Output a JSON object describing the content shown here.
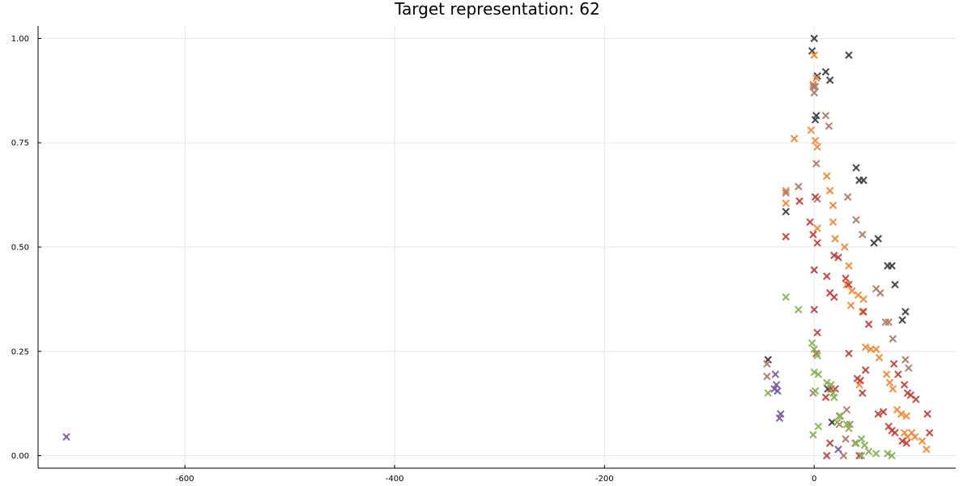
{
  "chart_data": {
    "type": "scatter",
    "title": "Target representation: 62",
    "xlabel": "",
    "ylabel": "",
    "xlim": [
      -740,
      135
    ],
    "ylim": [
      -0.03,
      1.03
    ],
    "x_ticks": [
      -600,
      -400,
      -200,
      0
    ],
    "x_tick_labels": [
      "-600",
      "-400",
      "-200",
      "0"
    ],
    "y_ticks": [
      0,
      0.25,
      0.5,
      0.75,
      1.0
    ],
    "y_tick_labels": [
      "0.00",
      "0.25",
      "0.50",
      "0.75",
      "1.00"
    ],
    "grid": true,
    "marker": "x",
    "series": [
      {
        "name": "dark",
        "color": "#3e3e44",
        "points": [
          [
            0,
            1.0
          ],
          [
            -2,
            0.97
          ],
          [
            33,
            0.96
          ],
          [
            11,
            0.92
          ],
          [
            3,
            0.91
          ],
          [
            15,
            0.9
          ],
          [
            2,
            0.815
          ],
          [
            1,
            0.805
          ],
          [
            40,
            0.69
          ],
          [
            43,
            0.66
          ],
          [
            47,
            0.66
          ],
          [
            -27,
            0.585
          ],
          [
            61,
            0.52
          ],
          [
            57,
            0.51
          ],
          [
            70,
            0.455
          ],
          [
            74,
            0.455
          ],
          [
            77,
            0.41
          ],
          [
            87,
            0.345
          ],
          [
            84,
            0.325
          ],
          [
            -44,
            0.23
          ],
          [
            13,
            0.16
          ],
          [
            17,
            0.08
          ]
        ]
      },
      {
        "name": "orange",
        "color": "#f0893a",
        "points": [
          [
            0,
            0.96
          ],
          [
            2,
            0.905
          ],
          [
            -1,
            0.89
          ],
          [
            -3,
            0.78
          ],
          [
            -19,
            0.76
          ],
          [
            1,
            0.755
          ],
          [
            3,
            0.74
          ],
          [
            12,
            0.67
          ],
          [
            -27,
            0.635
          ],
          [
            15,
            0.635
          ],
          [
            -27,
            0.605
          ],
          [
            18,
            0.6
          ],
          [
            3,
            0.545
          ],
          [
            18,
            0.56
          ],
          [
            20,
            0.52
          ],
          [
            29,
            0.5
          ],
          [
            33,
            0.455
          ],
          [
            31,
            0.41
          ],
          [
            36,
            0.395
          ],
          [
            42,
            0.385
          ],
          [
            47,
            0.375
          ],
          [
            35,
            0.36
          ],
          [
            46,
            0.345
          ],
          [
            49,
            0.26
          ],
          [
            54,
            0.255
          ],
          [
            59,
            0.255
          ],
          [
            62,
            0.235
          ],
          [
            43,
            0.17
          ],
          [
            69,
            0.195
          ],
          [
            72,
            0.175
          ],
          [
            75,
            0.16
          ],
          [
            79,
            0.11
          ],
          [
            83,
            0.1
          ],
          [
            88,
            0.095
          ],
          [
            93,
            0.055
          ],
          [
            86,
            0.055
          ],
          [
            96,
            0.045
          ],
          [
            89,
            0.045
          ],
          [
            103,
            0.035
          ],
          [
            107,
            0.015
          ]
        ]
      },
      {
        "name": "tan",
        "color": "#b07b68",
        "points": [
          [
            -1,
            0.885
          ],
          [
            1,
            0.885
          ],
          [
            0,
            0.87
          ],
          [
            11,
            0.815
          ],
          [
            14,
            0.79
          ],
          [
            2,
            0.7
          ],
          [
            -15,
            0.645
          ],
          [
            -27,
            0.63
          ],
          [
            32,
            0.62
          ],
          [
            3,
            0.615
          ],
          [
            40,
            0.565
          ],
          [
            46,
            0.53
          ],
          [
            59,
            0.4
          ],
          [
            63,
            0.39
          ],
          [
            71,
            0.32
          ],
          [
            68,
            0.32
          ],
          [
            75,
            0.28
          ],
          [
            87,
            0.23
          ],
          [
            90,
            0.21
          ],
          [
            -45,
            0.22
          ],
          [
            -45,
            0.19
          ],
          [
            -1,
            0.15
          ],
          [
            24,
            0.095
          ],
          [
            31,
            0.11
          ],
          [
            24,
            0.075
          ],
          [
            34,
            0.075
          ],
          [
            30,
            0.04
          ],
          [
            39,
            0.03
          ],
          [
            28,
            0.0
          ]
        ]
      },
      {
        "name": "red",
        "color": "#c0423e",
        "points": [
          [
            1,
            0.62
          ],
          [
            -14,
            0.61
          ],
          [
            -4,
            0.56
          ],
          [
            -1,
            0.53
          ],
          [
            3,
            0.51
          ],
          [
            -27,
            0.525
          ],
          [
            19,
            0.48
          ],
          [
            23,
            0.475
          ],
          [
            0,
            0.445
          ],
          [
            12,
            0.43
          ],
          [
            30,
            0.425
          ],
          [
            33,
            0.41
          ],
          [
            15,
            0.39
          ],
          [
            19,
            0.38
          ],
          [
            47,
            0.345
          ],
          [
            52,
            0.315
          ],
          [
            0,
            0.35
          ],
          [
            3,
            0.295
          ],
          [
            2,
            0.245
          ],
          [
            33,
            0.245
          ],
          [
            49,
            0.205
          ],
          [
            41,
            0.185
          ],
          [
            44,
            0.18
          ],
          [
            76,
            0.22
          ],
          [
            80,
            0.195
          ],
          [
            86,
            0.17
          ],
          [
            89,
            0.15
          ],
          [
            92,
            0.145
          ],
          [
            97,
            0.135
          ],
          [
            61,
            0.1
          ],
          [
            66,
            0.105
          ],
          [
            71,
            0.07
          ],
          [
            74,
            0.06
          ],
          [
            77,
            0.055
          ],
          [
            84,
            0.035
          ],
          [
            88,
            0.03
          ],
          [
            16,
            0.16
          ],
          [
            20,
            0.16
          ],
          [
            11,
            0.14
          ],
          [
            46,
            0.15
          ],
          [
            108,
            0.1
          ],
          [
            110,
            0.055
          ],
          [
            15,
            0.03
          ],
          [
            12,
            0.0
          ],
          [
            43,
            0.0
          ]
        ]
      },
      {
        "name": "green",
        "color": "#87b25a",
        "points": [
          [
            -27,
            0.38
          ],
          [
            -15,
            0.35
          ],
          [
            -2,
            0.27
          ],
          [
            0,
            0.255
          ],
          [
            3,
            0.24
          ],
          [
            0,
            0.2
          ],
          [
            4,
            0.195
          ],
          [
            12,
            0.175
          ],
          [
            16,
            0.17
          ],
          [
            18,
            0.15
          ],
          [
            -44,
            0.15
          ],
          [
            1,
            0.155
          ],
          [
            19,
            0.14
          ],
          [
            25,
            0.095
          ],
          [
            22,
            0.08
          ],
          [
            31,
            0.075
          ],
          [
            -1,
            0.05
          ],
          [
            33,
            0.065
          ],
          [
            4,
            0.07
          ],
          [
            45,
            0.04
          ],
          [
            40,
            0.03
          ],
          [
            48,
            0.025
          ],
          [
            52,
            0.01
          ],
          [
            59,
            0.005
          ],
          [
            70,
            0.005
          ],
          [
            74,
            0.0
          ],
          [
            45,
            0.0
          ]
        ]
      },
      {
        "name": "purple",
        "color": "#7a5aa4",
        "points": [
          [
            -713,
            0.045
          ],
          [
            -37,
            0.195
          ],
          [
            -36,
            0.17
          ],
          [
            -38,
            0.16
          ],
          [
            -35,
            0.155
          ],
          [
            -32,
            0.1
          ],
          [
            -33,
            0.09
          ],
          [
            23,
            0.015
          ]
        ]
      }
    ]
  }
}
